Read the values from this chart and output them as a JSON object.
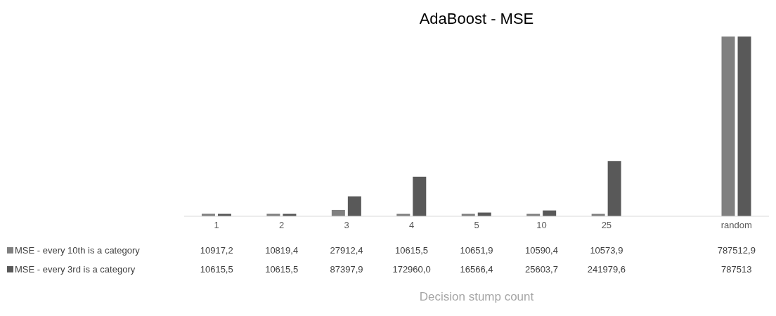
{
  "chart_data": {
    "type": "bar",
    "title": "AdaBoost - MSE",
    "xlabel": "Decision stump count",
    "categories": [
      "1",
      "2",
      "3",
      "4",
      "5",
      "10",
      "25",
      null,
      "random"
    ],
    "series": [
      {
        "name": "MSE - every 10th is a category",
        "color": "#808080",
        "values": [
          10917.2,
          10819.4,
          27912.4,
          10615.5,
          10651.9,
          10590.4,
          10573.9,
          null,
          787512.9
        ],
        "value_labels": [
          "10917,2",
          "10819,4",
          "27912,4",
          "10615,5",
          "10651,9",
          "10590,4",
          "10573,9",
          null,
          "787512,9"
        ]
      },
      {
        "name": "MSE - every 3rd is a category",
        "color": "#595959",
        "values": [
          10615.5,
          10615.5,
          87397.9,
          172960.0,
          16566.4,
          25603.7,
          241979.6,
          null,
          787513
        ],
        "value_labels": [
          "10615,5",
          "10615,5",
          "87397,9",
          "172960,0",
          "16566,4",
          "25603,7",
          "241979,6",
          null,
          "787513"
        ]
      }
    ],
    "legend": "bottom",
    "grid": false
  }
}
